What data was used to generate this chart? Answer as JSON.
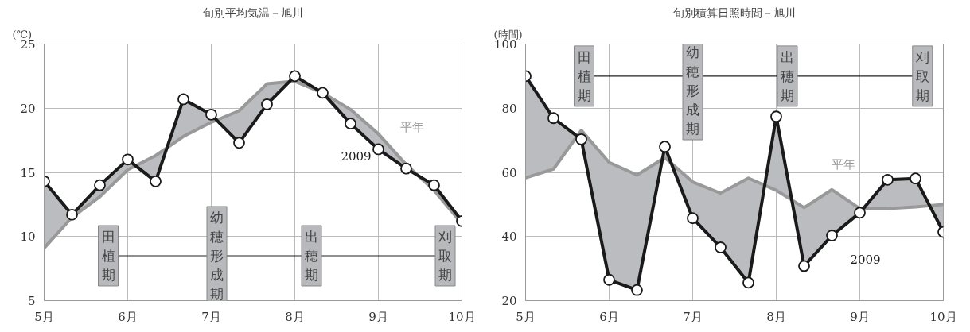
{
  "chart_data": [
    {
      "type": "line",
      "title": "旬別平均気温－旭川",
      "ylabel": "(℃)",
      "categories": [
        "5月",
        null,
        null,
        "6月",
        null,
        null,
        "7月",
        null,
        null,
        "8月",
        null,
        null,
        "9月",
        null,
        null,
        "10月"
      ],
      "ylim": [
        5,
        25
      ],
      "yticks": [
        5,
        10,
        15,
        20,
        25
      ],
      "grid": true,
      "marker": "circle",
      "line_style": "solid",
      "series": [
        {
          "name": "平年",
          "color": "#999999",
          "values": [
            9.1,
            11.5,
            13.1,
            15.2,
            16.3,
            17.8,
            18.9,
            19.8,
            21.9,
            22.1,
            21.2,
            19.9,
            18.0,
            15.6,
            13.6,
            11.0
          ],
          "marker": "none"
        },
        {
          "name": "2009",
          "color": "#1a1a1a",
          "values": [
            14.3,
            11.7,
            14.0,
            16.0,
            14.3,
            20.7,
            19.5,
            17.3,
            20.3,
            22.5,
            21.2,
            18.8,
            16.8,
            15.3,
            14.0,
            11.2
          ],
          "lower": [
            9.1,
            11.5,
            13.1,
            15.2,
            16.3,
            17.8,
            18.9,
            19.8,
            21.9,
            22.1,
            21.2,
            19.9,
            18.0,
            15.6,
            13.6,
            11.0
          ],
          "upper": [
            14.3,
            11.7,
            14.0,
            16.0,
            14.3,
            20.7,
            19.5,
            17.3,
            20.3,
            22.5,
            21.2,
            18.8,
            16.8,
            15.3,
            14.0,
            11.2
          ]
        }
      ],
      "ref_lines": [
        {
          "axis": "y",
          "value": 8.5,
          "color": "#222222"
        }
      ],
      "annotations": [
        "田植期",
        "幼穂形成期",
        "出穂期",
        "刈取期"
      ]
    },
    {
      "type": "line",
      "title": "旬別積算日照時間－旭川",
      "ylabel": "(時間)",
      "categories": [
        "5月",
        null,
        null,
        "6月",
        null,
        null,
        "7月",
        null,
        null,
        "8月",
        null,
        null,
        "9月",
        null,
        null,
        "10月"
      ],
      "ylim": [
        20,
        100
      ],
      "yticks": [
        20,
        40,
        60,
        80,
        100
      ],
      "grid": true,
      "marker": "circle",
      "line_style": "solid",
      "series": [
        {
          "name": "平年",
          "color": "#999999",
          "values": [
            58.3,
            61,
            73.1,
            63.1,
            59.2,
            64.6,
            57,
            53.5,
            58.2,
            54.4,
            49,
            54.6,
            48.7,
            48.7,
            49.2,
            50
          ],
          "marker": "none"
        },
        {
          "name": "2009",
          "color": "#1a1a1a",
          "values": [
            90,
            76.9,
            70.3,
            26.5,
            23.3,
            68,
            45.7,
            36.6,
            25.6,
            77.4,
            30.8,
            40.3,
            47.4,
            57.7,
            58.1,
            41.4
          ],
          "lower": [
            58.3,
            61,
            73.1,
            63.1,
            59.2,
            64.6,
            57,
            53.5,
            58.2,
            54.4,
            49,
            54.6,
            48.7,
            48.7,
            49.2,
            50
          ],
          "upper": [
            90,
            76.9,
            70.3,
            26.5,
            23.3,
            68,
            45.7,
            36.6,
            25.6,
            77.4,
            30.8,
            40.3,
            47.4,
            57.7,
            58.1,
            41.4
          ]
        }
      ],
      "ref_lines": [
        {
          "axis": "y",
          "value": 90,
          "color": "#222222"
        }
      ],
      "annotations": [
        "田植期",
        "幼穂形成期",
        "出穂期",
        "刈取期"
      ]
    }
  ]
}
